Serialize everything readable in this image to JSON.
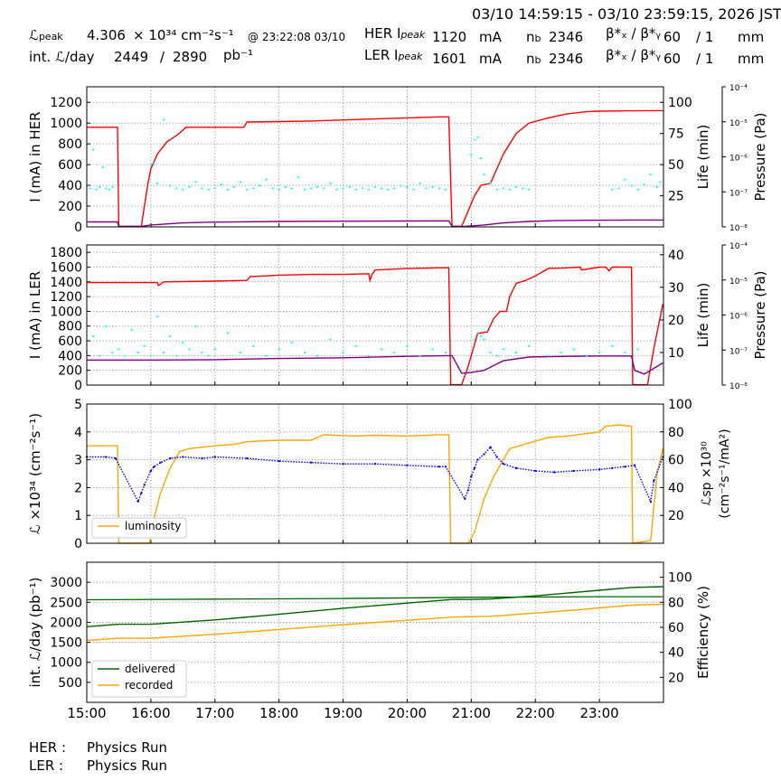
{
  "header": {
    "time_range": "03/10 14:59:15 - 03/10 23:59:15, 2026 JST",
    "lpeak_label": "ℒ",
    "lpeak_sub": "peak",
    "lpeak_value": "4.306",
    "lpeak_unit": "× 10³⁴ cm⁻²s⁻¹",
    "lpeak_time": "@ 23:22:08 03/10",
    "intl_label": "int. ℒ/day",
    "intl_value": "2449",
    "intl_sep": "/",
    "intl_total": "2890",
    "intl_unit": "pb⁻¹",
    "her_label": "HER I",
    "her_sub": "peak",
    "her_value": "1120",
    "her_unit": "mA",
    "ler_label": "LER I",
    "ler_sub": "peak",
    "ler_value": "1601",
    "ler_unit": "mA",
    "nb_label": "n",
    "nb_sub": "b",
    "her_nb": "2346",
    "ler_nb": "2346",
    "beta_label": "β*ₓ / β*ᵧ",
    "her_beta": "60",
    "her_beta2": "/ 1",
    "ler_beta": "60",
    "ler_beta2": "/ 1",
    "beta_unit": "mm"
  },
  "footer": {
    "her_label": "HER :",
    "her_status": "Physics Run",
    "ler_label": "LER :",
    "ler_status": "Physics Run"
  },
  "colors": {
    "current": "#ff0000",
    "life": "#00ffff",
    "pressure": "#800080",
    "luminosity": "#ffa500",
    "specific": "#0000ff",
    "delivered": "#006400",
    "recorded": "#ffa500"
  },
  "chart_data": [
    {
      "type": "line",
      "panel": "her",
      "ylabel": "I (mA) in HER",
      "ylim": [
        0,
        1350
      ],
      "yticks": [
        0,
        200,
        400,
        600,
        800,
        1000,
        1200
      ],
      "y2label": "Life (min)",
      "y2lim": [
        0,
        112.5
      ],
      "y2ticks": [
        25,
        50,
        75,
        100
      ],
      "y3label": "Pressure (Pa)",
      "y3ticks": [
        "10⁻⁴",
        "10⁻⁵",
        "10⁻⁶",
        "10⁻⁷",
        "10⁻⁸"
      ],
      "grid": true,
      "series": [
        {
          "role": "current",
          "x": [
            15.0,
            15.48,
            15.5,
            15.85,
            15.95,
            16.0,
            16.1,
            16.25,
            16.4,
            16.55,
            16.7,
            17.0,
            17.2,
            17.45,
            17.5,
            18.0,
            18.5,
            19.0,
            19.5,
            20.0,
            20.5,
            20.65,
            20.7,
            20.85,
            20.95,
            21.05,
            21.15,
            21.3,
            21.5,
            21.7,
            21.9,
            22.2,
            22.5,
            22.8,
            23.0,
            23.5,
            23.99
          ],
          "y": [
            960,
            960,
            5,
            5,
            400,
            560,
            700,
            820,
            880,
            960,
            960,
            960,
            960,
            960,
            1010,
            1015,
            1020,
            1030,
            1040,
            1050,
            1060,
            1060,
            5,
            5,
            150,
            300,
            400,
            420,
            700,
            900,
            1000,
            1050,
            1090,
            1110,
            1115,
            1118,
            1120
          ]
        },
        {
          "role": "pressure",
          "x": [
            15.0,
            15.48,
            15.5,
            15.85,
            16.0,
            16.5,
            17.0,
            18.0,
            19.0,
            20.0,
            20.65,
            20.7,
            20.9,
            21.2,
            21.5,
            21.9,
            22.3,
            22.8,
            23.5,
            23.99
          ],
          "y": [
            48,
            48,
            5,
            5,
            18,
            38,
            46,
            52,
            55,
            57,
            58,
            5,
            5,
            18,
            38,
            52,
            60,
            64,
            66,
            66
          ]
        },
        {
          "role": "life",
          "x": [
            15.0,
            15.05,
            15.1,
            15.15,
            15.2,
            15.25,
            15.3,
            15.35,
            15.4,
            16.0,
            16.05,
            16.1,
            16.2,
            16.3,
            16.4,
            16.5,
            16.6,
            16.7,
            16.8,
            16.9,
            17.0,
            17.1,
            17.2,
            17.3,
            17.4,
            17.5,
            17.6,
            17.7,
            17.8,
            17.9,
            18.0,
            18.1,
            18.2,
            18.3,
            18.4,
            18.5,
            18.6,
            18.7,
            18.8,
            18.9,
            19.0,
            19.1,
            19.2,
            19.3,
            19.4,
            19.5,
            19.6,
            19.7,
            19.8,
            19.9,
            20.0,
            20.1,
            20.2,
            20.3,
            20.4,
            20.5,
            20.6,
            21.0,
            21.05,
            21.1,
            21.15,
            21.2,
            21.3,
            21.4,
            21.5,
            21.6,
            21.7,
            21.8,
            21.9,
            23.2,
            23.3,
            23.4,
            23.5,
            23.6,
            23.7,
            23.8,
            23.9,
            23.95
          ],
          "y": [
            33,
            31,
            62,
            30,
            32,
            48,
            31,
            30,
            32,
            50,
            51,
            35,
            86,
            33,
            31,
            30,
            32,
            36,
            31,
            30,
            31,
            34,
            30,
            32,
            36,
            30,
            31,
            33,
            38,
            31,
            30,
            32,
            31,
            40,
            30,
            31,
            32,
            31,
            35,
            30,
            31,
            32,
            30,
            31,
            30,
            32,
            31,
            30,
            31,
            33,
            32,
            30,
            35,
            31,
            32,
            31,
            30,
            58,
            70,
            72,
            55,
            42,
            35,
            30,
            31,
            30,
            32,
            31,
            30,
            30,
            31,
            38,
            33,
            30,
            34,
            42,
            32,
            36
          ]
        }
      ]
    },
    {
      "type": "line",
      "panel": "ler",
      "ylabel": "I (mA) in LER",
      "ylim": [
        0,
        1900
      ],
      "yticks": [
        0,
        200,
        400,
        600,
        800,
        1000,
        1200,
        1400,
        1600,
        1800
      ],
      "y2label": "Life (min)",
      "y2lim": [
        0,
        43
      ],
      "y2ticks": [
        10,
        20,
        30,
        40
      ],
      "y3label": "Pressure (Pa)",
      "y3ticks": [
        "10⁻⁴",
        "10⁻⁵",
        "10⁻⁶",
        "10⁻⁷",
        "10⁻⁸"
      ],
      "grid": true,
      "series": [
        {
          "role": "current",
          "x": [
            15.0,
            16.0,
            16.1,
            16.12,
            16.2,
            17.0,
            17.5,
            17.55,
            18.0,
            18.5,
            19.0,
            19.4,
            19.42,
            19.45,
            19.5,
            20.0,
            20.5,
            20.65,
            20.68,
            20.85,
            20.95,
            21.1,
            21.25,
            21.35,
            21.45,
            21.55,
            21.6,
            21.7,
            21.85,
            22.0,
            22.2,
            22.5,
            22.7,
            22.72,
            23.0,
            23.1,
            23.15,
            23.2,
            23.5,
            23.52,
            23.75,
            23.85,
            23.99
          ],
          "y": [
            1390,
            1390,
            1390,
            1350,
            1400,
            1410,
            1420,
            1470,
            1490,
            1500,
            1500,
            1510,
            1420,
            1500,
            1560,
            1580,
            1590,
            1590,
            5,
            5,
            250,
            700,
            720,
            900,
            1000,
            1000,
            1200,
            1380,
            1420,
            1480,
            1580,
            1590,
            1600,
            1560,
            1600,
            1600,
            1550,
            1600,
            1600,
            5,
            5,
            500,
            1100
          ]
        },
        {
          "role": "pressure",
          "x": [
            15.0,
            16.0,
            17.0,
            18.0,
            19.0,
            20.0,
            20.65,
            20.7,
            20.85,
            21.0,
            21.2,
            21.5,
            21.9,
            22.5,
            23.0,
            23.5,
            23.55,
            23.7,
            23.99
          ],
          "y": [
            340,
            340,
            345,
            360,
            370,
            390,
            400,
            400,
            160,
            170,
            200,
            330,
            380,
            390,
            395,
            395,
            200,
            150,
            300
          ]
        },
        {
          "role": "life",
          "x": [
            15.0,
            15.1,
            15.2,
            15.3,
            15.4,
            15.5,
            15.6,
            15.7,
            15.8,
            15.9,
            16.0,
            16.1,
            16.2,
            16.3,
            16.4,
            16.5,
            16.6,
            16.7,
            16.8,
            16.9,
            17.0,
            17.2,
            17.4,
            17.6,
            17.8,
            18.0,
            18.2,
            18.4,
            18.6,
            18.8,
            19.0,
            19.2,
            19.4,
            19.6,
            19.8,
            20.0,
            20.2,
            20.4,
            20.6,
            21.05,
            21.1,
            21.15,
            21.2,
            21.3,
            21.4,
            21.5,
            21.7,
            21.9,
            22.2,
            22.4,
            22.6,
            22.8,
            23.0,
            23.2,
            23.4,
            23.6
          ],
          "y": [
            10,
            15,
            9,
            18,
            10,
            11,
            9,
            17,
            10,
            12,
            9,
            21,
            10,
            15,
            9,
            13,
            11,
            18,
            10,
            9,
            11,
            16,
            10,
            12,
            9,
            11,
            13,
            10,
            9,
            14,
            10,
            12,
            9,
            11,
            10,
            12,
            9,
            11,
            10,
            14,
            16,
            15,
            14,
            10,
            9,
            11,
            10,
            12,
            9,
            10,
            11,
            9,
            10,
            12,
            10,
            11
          ]
        }
      ]
    },
    {
      "type": "line",
      "panel": "lumi",
      "ylabel": "ℒ ×10³⁴ (cm⁻²s⁻¹)",
      "ylim": [
        0,
        5
      ],
      "yticks": [
        0,
        1,
        2,
        3,
        4,
        5
      ],
      "y2label": "ℒsp ×10³⁰",
      "y2label2": "(cm⁻²s⁻¹/mA²)",
      "y2lim": [
        0,
        100
      ],
      "y2ticks": [
        20,
        40,
        60,
        80,
        100
      ],
      "legend": "lower-left",
      "grid": true,
      "series": [
        {
          "role": "luminosity",
          "name": "luminosity",
          "x": [
            15.0,
            15.48,
            15.5,
            15.98,
            16.05,
            16.15,
            16.3,
            16.45,
            16.6,
            16.8,
            17.0,
            17.3,
            17.5,
            18.0,
            18.5,
            18.7,
            19.2,
            19.5,
            20.0,
            20.5,
            20.65,
            20.68,
            20.95,
            21.05,
            21.2,
            21.35,
            21.5,
            21.6,
            21.9,
            22.2,
            22.5,
            23.0,
            23.1,
            23.3,
            23.5,
            23.52,
            23.8,
            23.9,
            23.99
          ],
          "y": [
            3.5,
            3.5,
            0,
            0,
            0.9,
            1.8,
            2.7,
            3.3,
            3.4,
            3.45,
            3.5,
            3.55,
            3.65,
            3.7,
            3.7,
            3.9,
            3.85,
            3.88,
            3.85,
            3.9,
            3.9,
            0,
            0,
            0.4,
            1.6,
            2.4,
            3.0,
            3.4,
            3.6,
            3.8,
            3.85,
            4.0,
            4.2,
            4.25,
            4.2,
            0,
            0.1,
            2.5,
            3.4
          ]
        },
        {
          "role": "specific",
          "x": [
            15.0,
            15.3,
            15.45,
            15.8,
            15.85,
            15.9,
            16.0,
            16.05,
            16.15,
            16.3,
            16.5,
            16.8,
            17.0,
            17.5,
            18.0,
            18.5,
            19.0,
            19.5,
            20.0,
            20.5,
            20.6,
            20.9,
            20.95,
            21.0,
            21.05,
            21.1,
            21.2,
            21.3,
            21.4,
            21.5,
            21.7,
            22.0,
            22.3,
            22.6,
            23.0,
            23.2,
            23.4,
            23.55,
            23.8,
            23.85,
            23.99
          ],
          "y": [
            62,
            62,
            61,
            30,
            36,
            42,
            52,
            55,
            58,
            61,
            62,
            61,
            62,
            61,
            59,
            58,
            57,
            57,
            56,
            55,
            55,
            32,
            38,
            48,
            54,
            60,
            64,
            69,
            62,
            57,
            54,
            52,
            51,
            52,
            53,
            54,
            55,
            56,
            30,
            45,
            62
          ]
        }
      ]
    },
    {
      "type": "line",
      "panel": "intl",
      "ylabel": "int. ℒ/day (pb⁻¹)",
      "ylim": [
        0,
        3500
      ],
      "yticks": [
        500,
        1000,
        1500,
        2000,
        2500,
        3000
      ],
      "y2label": "Efficiency (%)",
      "y2lim": [
        0,
        112
      ],
      "y2ticks": [
        20,
        40,
        60,
        80,
        100
      ],
      "xticks": [
        "15:00",
        "16:00",
        "17:00",
        "18:00",
        "19:00",
        "20:00",
        "21:00",
        "22:00",
        "23:00"
      ],
      "legend": "lower-left",
      "grid": true,
      "series": [
        {
          "role": "delivered",
          "name": "delivered",
          "x": [
            15.0,
            15.5,
            16.0,
            17.0,
            18.0,
            19.0,
            20.0,
            20.7,
            21.0,
            21.3,
            22.0,
            22.5,
            23.0,
            23.5,
            23.99
          ],
          "y": [
            1890,
            1950,
            1950,
            2060,
            2200,
            2350,
            2480,
            2570,
            2570,
            2580,
            2660,
            2730,
            2800,
            2870,
            2890
          ]
        },
        {
          "role": "recorded",
          "name": "recorded",
          "x": [
            15.0,
            15.5,
            16.0,
            17.0,
            18.0,
            19.0,
            20.0,
            20.7,
            21.0,
            21.3,
            22.0,
            22.5,
            23.0,
            23.5,
            23.99
          ],
          "y": [
            1550,
            1600,
            1600,
            1700,
            1820,
            1940,
            2050,
            2130,
            2140,
            2150,
            2230,
            2290,
            2360,
            2430,
            2449
          ]
        },
        {
          "role": "efficiency",
          "x": [
            15.0,
            17.0,
            19.0,
            21.0,
            23.0,
            23.99
          ],
          "y": [
            82,
            82.5,
            83,
            84,
            84.5,
            84.5
          ]
        }
      ]
    }
  ]
}
